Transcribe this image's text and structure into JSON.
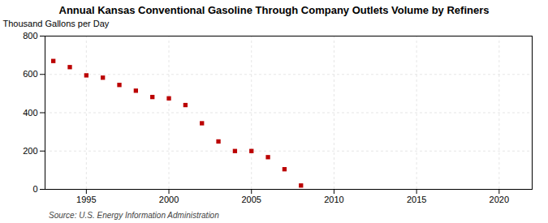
{
  "chart_data": {
    "type": "scatter",
    "title": "Annual Kansas Conventional Gasoline Through Company Outlets Volume by Refiners",
    "ylabel": "Thousand Gallons per Day",
    "source": "Source: U.S. Energy Information Administration",
    "x": [
      1993,
      1994,
      1995,
      1996,
      1997,
      1998,
      1999,
      2000,
      2001,
      2002,
      2003,
      2004,
      2005,
      2006,
      2007,
      2008
    ],
    "values": [
      670,
      638,
      595,
      583,
      545,
      515,
      482,
      475,
      440,
      345,
      250,
      200,
      200,
      168,
      105,
      20
    ],
    "color": "#bb0000",
    "marker": "square",
    "xlim": [
      1992.5,
      2022
    ],
    "ylim": [
      0,
      800
    ],
    "xticks": [
      1995,
      2000,
      2005,
      2010,
      2015,
      2020
    ],
    "yticks": [
      0,
      200,
      400,
      600,
      800
    ],
    "grid": true
  }
}
